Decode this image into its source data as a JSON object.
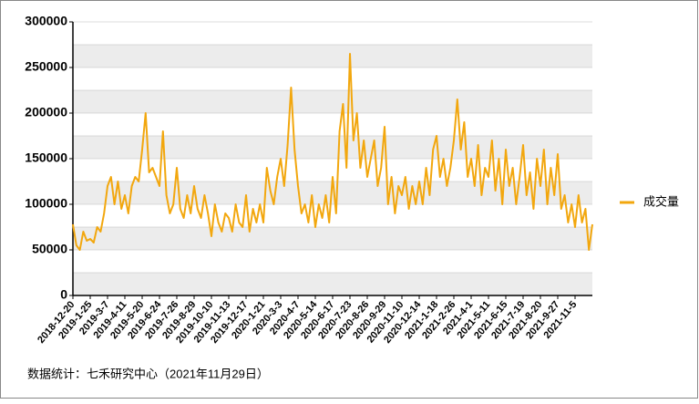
{
  "chart_data": {
    "type": "line",
    "footnote": "数据统计：七禾研究中心（2021年11月29日）",
    "categories": [
      "2018-12-20",
      null,
      null,
      null,
      null,
      "2019-1-25",
      null,
      null,
      null,
      null,
      "2019-3-7",
      null,
      null,
      null,
      null,
      "2019-4-11",
      null,
      null,
      null,
      null,
      "2019-5-20",
      null,
      null,
      null,
      null,
      "2019-6-24",
      null,
      null,
      null,
      null,
      "2019-7-26",
      null,
      null,
      null,
      null,
      "2019-8-29",
      null,
      null,
      null,
      null,
      "2019-10-10",
      null,
      null,
      null,
      null,
      "2019-11-13",
      null,
      null,
      null,
      null,
      "2019-12-17",
      null,
      null,
      null,
      null,
      "2020-1-21",
      null,
      null,
      null,
      null,
      "2020-3-3",
      null,
      null,
      null,
      null,
      "2020-4-7",
      null,
      null,
      null,
      null,
      "2020-5-14",
      null,
      null,
      null,
      null,
      "2020-6-17",
      null,
      null,
      null,
      null,
      "2020-7-23",
      null,
      null,
      null,
      null,
      "2020-8-26",
      null,
      null,
      null,
      null,
      "2020-9-29",
      null,
      null,
      null,
      null,
      "2020-11-10",
      null,
      null,
      null,
      null,
      "2020-12-14",
      null,
      null,
      null,
      null,
      "2021-1-18",
      null,
      null,
      null,
      null,
      "2021-2-26",
      null,
      null,
      null,
      null,
      "2021-4-1",
      null,
      null,
      null,
      null,
      "2021-5-11",
      null,
      null,
      null,
      null,
      "2021-6-15",
      null,
      null,
      null,
      null,
      "2021-7-19",
      null,
      null,
      null,
      null,
      "2021-8-20",
      null,
      null,
      null,
      null,
      "2021-9-27",
      null,
      null,
      null,
      null,
      "2021-11-5",
      null,
      null,
      null,
      null,
      null
    ],
    "series": [
      {
        "name": "成交量",
        "color": "#f2a70e",
        "values": [
          78000,
          55000,
          50000,
          70000,
          60000,
          62000,
          58000,
          75000,
          70000,
          90000,
          120000,
          130000,
          100000,
          125000,
          95000,
          110000,
          90000,
          120000,
          130000,
          125000,
          160000,
          200000,
          135000,
          140000,
          130000,
          120000,
          180000,
          110000,
          90000,
          100000,
          140000,
          95000,
          85000,
          110000,
          90000,
          120000,
          95000,
          85000,
          110000,
          90000,
          65000,
          100000,
          80000,
          70000,
          90000,
          85000,
          70000,
          100000,
          80000,
          75000,
          110000,
          70000,
          95000,
          80000,
          100000,
          80000,
          140000,
          115000,
          100000,
          130000,
          150000,
          120000,
          165000,
          228000,
          160000,
          120000,
          90000,
          100000,
          80000,
          110000,
          75000,
          100000,
          85000,
          110000,
          80000,
          130000,
          90000,
          180000,
          210000,
          140000,
          265000,
          170000,
          200000,
          140000,
          170000,
          130000,
          150000,
          170000,
          120000,
          140000,
          185000,
          100000,
          130000,
          90000,
          120000,
          110000,
          130000,
          95000,
          120000,
          100000,
          125000,
          100000,
          140000,
          110000,
          160000,
          175000,
          130000,
          150000,
          120000,
          140000,
          170000,
          215000,
          160000,
          190000,
          130000,
          150000,
          120000,
          165000,
          110000,
          140000,
          130000,
          170000,
          115000,
          150000,
          100000,
          160000,
          120000,
          140000,
          100000,
          130000,
          165000,
          110000,
          135000,
          95000,
          150000,
          120000,
          160000,
          100000,
          140000,
          110000,
          155000,
          95000,
          110000,
          80000,
          100000,
          75000,
          110000,
          80000,
          95000,
          50000,
          78000
        ]
      }
    ],
    "ylim": [
      0,
      300000
    ],
    "yticks": [
      0,
      50000,
      100000,
      150000,
      200000,
      250000,
      300000
    ],
    "grid": true,
    "legend": "right"
  }
}
